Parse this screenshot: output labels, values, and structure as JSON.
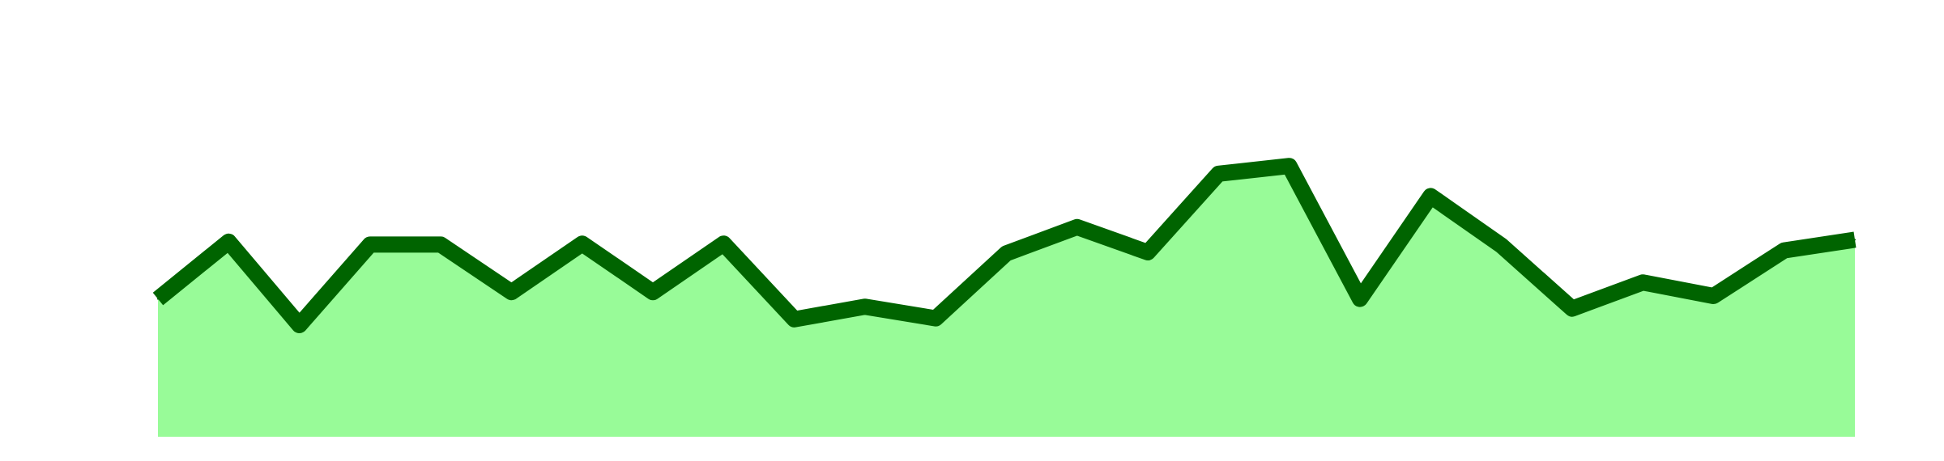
{
  "chart_data": {
    "type": "area",
    "x": [
      1,
      2,
      3,
      4,
      5,
      6,
      7,
      8,
      9,
      10,
      11,
      12,
      13,
      14,
      15,
      16,
      17,
      18,
      19,
      20,
      21,
      22,
      23,
      24,
      25
    ],
    "series": [
      {
        "values": [
          44.2,
          50.1,
          41.5,
          49.8,
          49.8,
          44.9,
          49.9,
          44.9,
          49.9,
          42.1,
          43.4,
          42.2,
          48.9,
          51.6,
          49.0,
          57.1,
          57.9,
          44.2,
          54.8,
          49.7,
          43.2,
          45.9,
          44.5,
          49.2,
          50.3
        ],
        "line_color": "#006400",
        "fill_color": "#98FB98"
      }
    ],
    "ylim": [
      30,
      75
    ],
    "grid": false,
    "legend": "none",
    "title": "",
    "xlabel": "",
    "ylabel": ""
  }
}
